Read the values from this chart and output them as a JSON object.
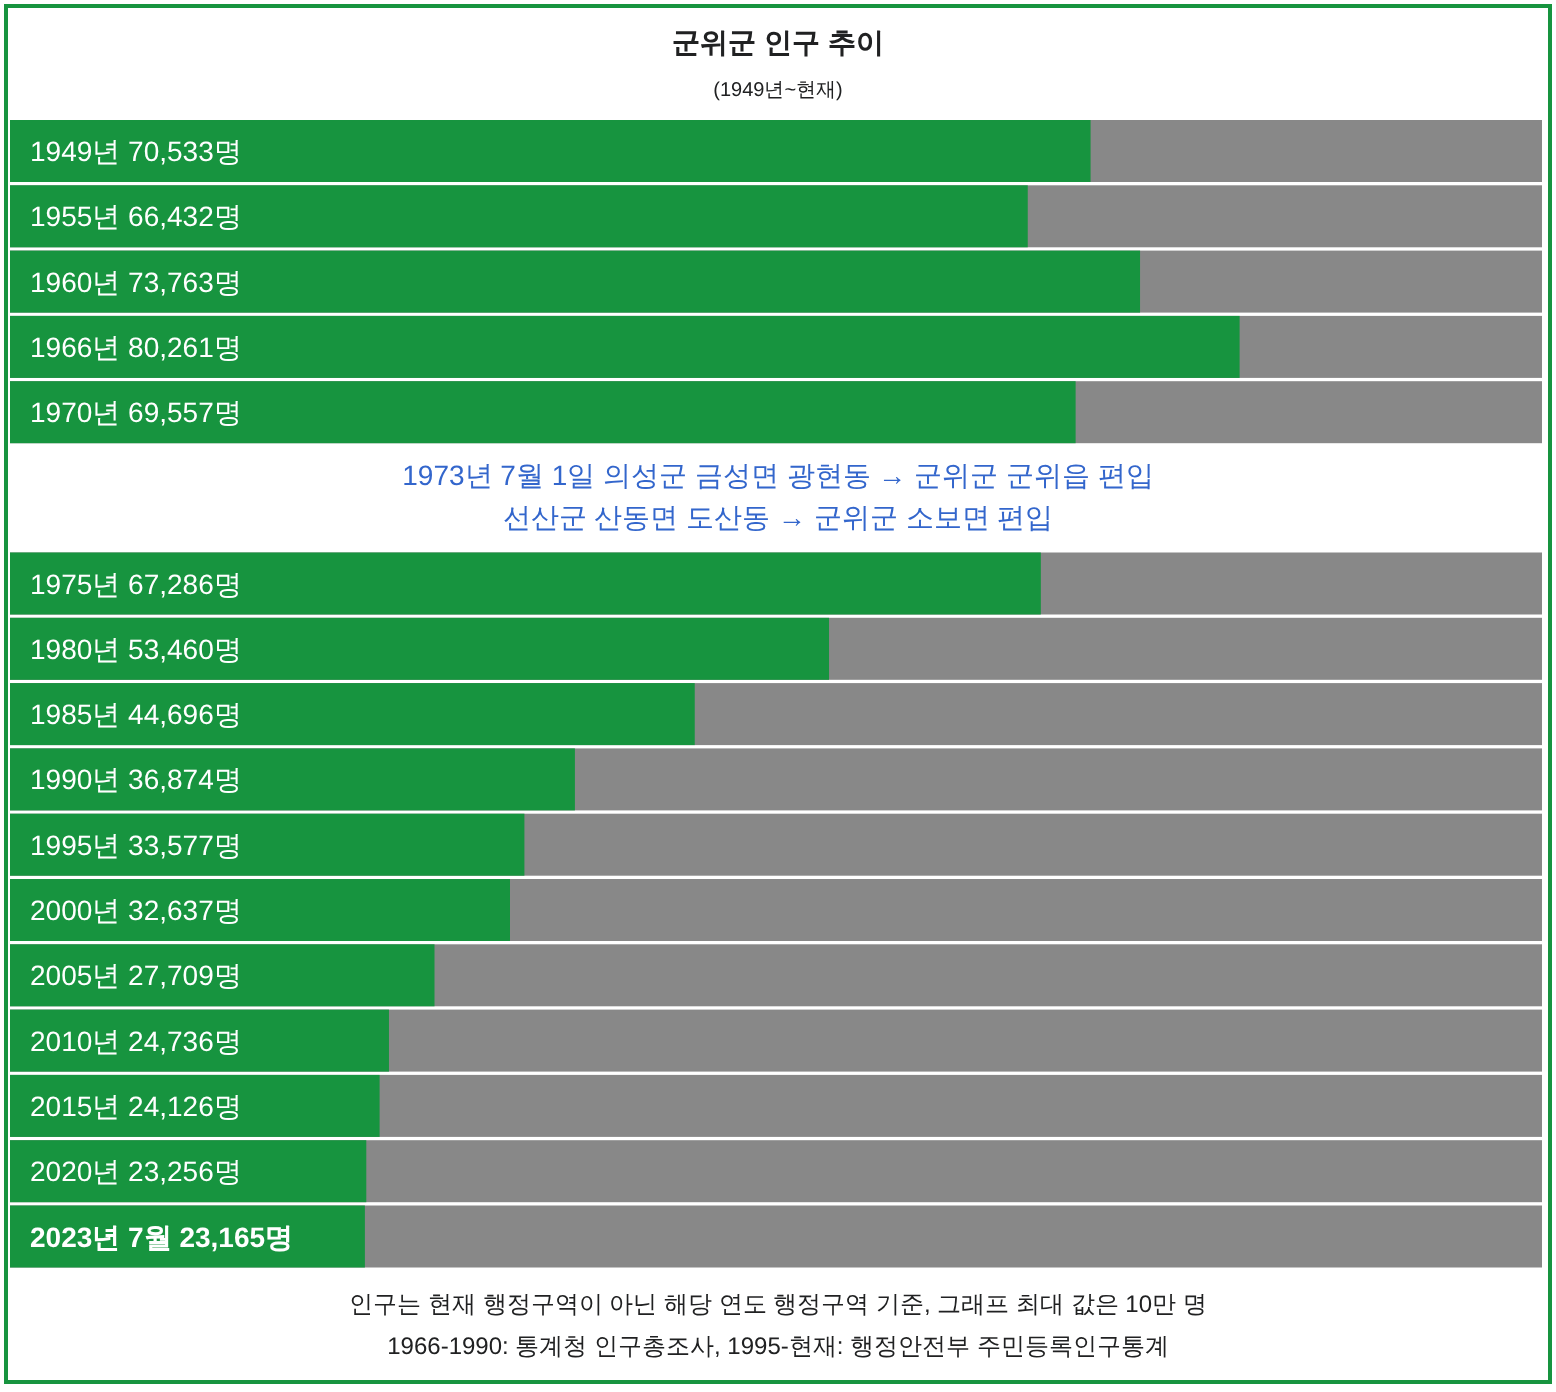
{
  "chart_data": {
    "type": "bar",
    "orientation": "horizontal",
    "title": "군위군 인구 추이",
    "subtitle": "(1949년~현재)",
    "categories": [
      "1949년",
      "1955년",
      "1960년",
      "1966년",
      "1970년",
      "1975년",
      "1980년",
      "1985년",
      "1990년",
      "1995년",
      "2000년",
      "2005년",
      "2010년",
      "2015년",
      "2020년",
      "2023년 7월"
    ],
    "values": [
      70533,
      66432,
      73763,
      80261,
      69557,
      67286,
      53460,
      44696,
      36874,
      33577,
      32637,
      27709,
      24736,
      24126,
      23256,
      23165
    ],
    "value_labels": [
      "70,533명",
      "66,432명",
      "73,763명",
      "80,261명",
      "69,557명",
      "67,286명",
      "53,460명",
      "44,696명",
      "36,874명",
      "33,577명",
      "32,637명",
      "27,709명",
      "24,736명",
      "24,126명",
      "23,256명",
      "23,165명"
    ],
    "color": "#17943f",
    "xlim": [
      0,
      100000
    ],
    "annotations": [
      "1973년 7월 1일 의성군 금성면 광현동 → 군위군 군위읍 편입",
      "선산군 산동면 도산동 → 군위군 소보면 편입",
      "인구는 현재 행정구역이 아닌 해당 연도 행정구역 기준, 그래프 최대 값은 10만 명",
      "1966-1990: 통계청 인구총조사, 1995-현재: 행정안전부 주민등록인구통계"
    ]
  }
}
